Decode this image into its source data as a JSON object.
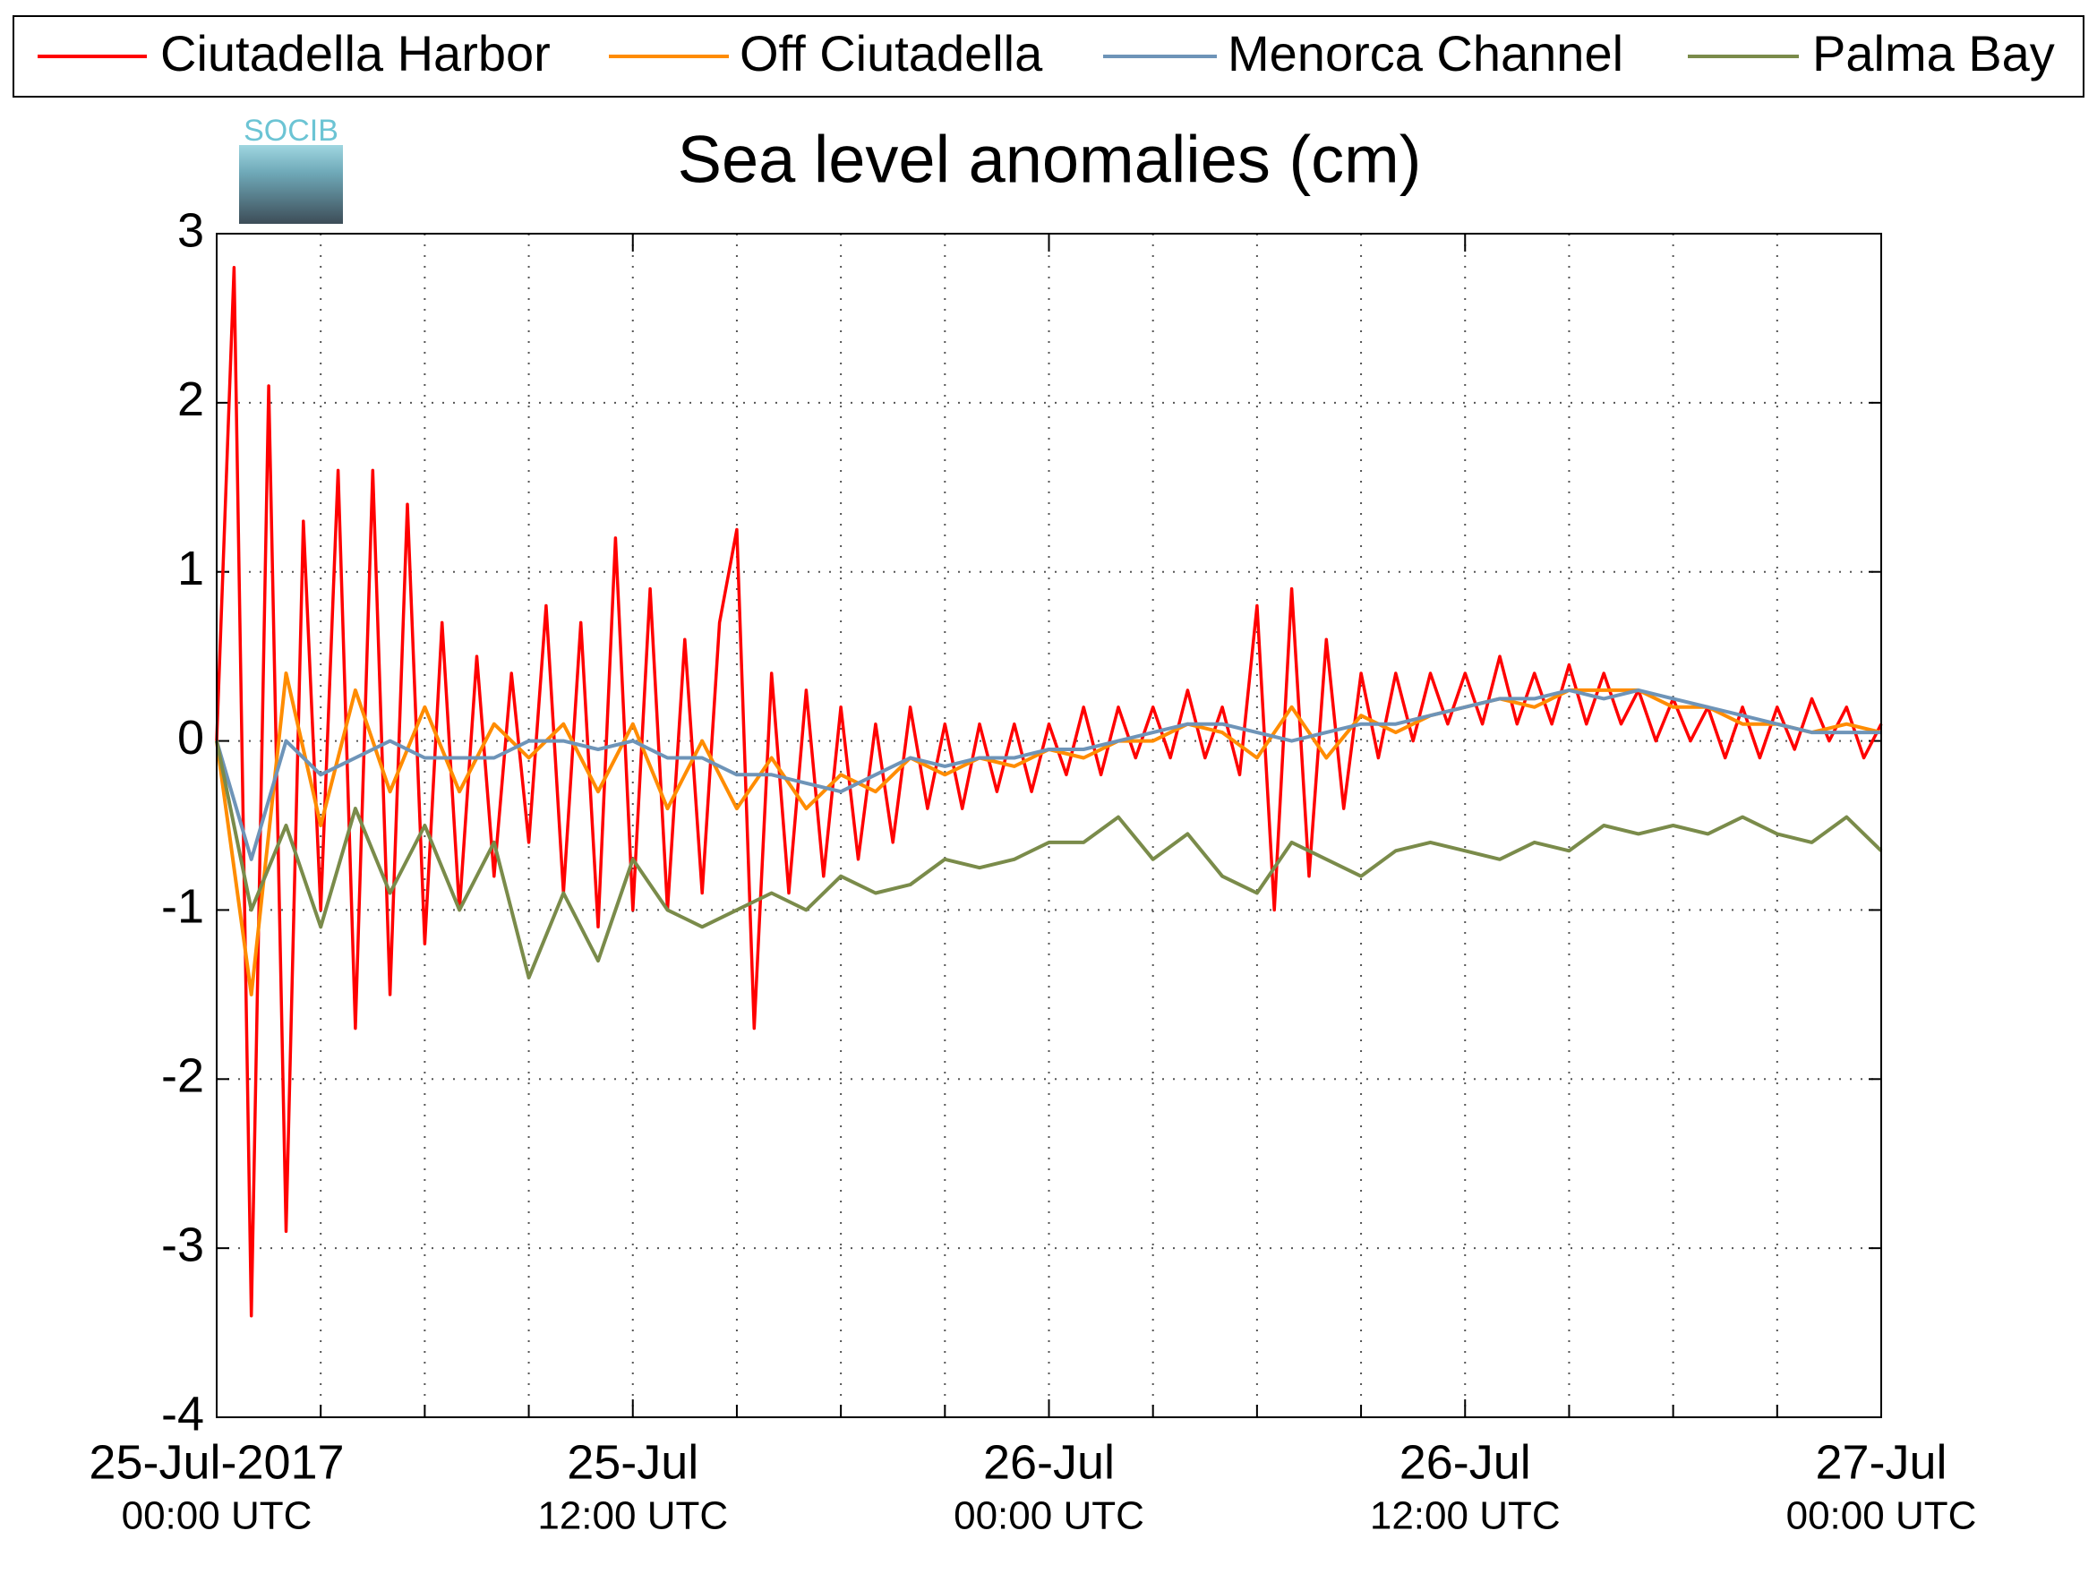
{
  "chart_data": {
    "type": "line",
    "title": "Sea level anomalies (cm)",
    "logo_text": "SOCIB",
    "xlim": [
      0,
      48
    ],
    "xticks": [
      {
        "value": 0,
        "label": [
          "25-Jul-2017",
          "00:00 UTC"
        ]
      },
      {
        "value": 12,
        "label": [
          "25-Jul",
          "12:00 UTC"
        ]
      },
      {
        "value": 24,
        "label": [
          "26-Jul",
          "00:00 UTC"
        ]
      },
      {
        "value": 36,
        "label": [
          "26-Jul",
          "12:00 UTC"
        ]
      },
      {
        "value": 48,
        "label": [
          "27-Jul",
          "00:00 UTC"
        ]
      }
    ],
    "xminorticks": [
      3,
      6,
      9,
      15,
      18,
      21,
      27,
      30,
      33,
      39,
      42,
      45
    ],
    "ylim": [
      -4,
      3
    ],
    "yticks": [
      -4,
      -3,
      -2,
      -1,
      0,
      1,
      2,
      3
    ],
    "grid": true,
    "legend": "top",
    "series": [
      {
        "name": "Ciutadella Harbor",
        "color": "#ff0000",
        "x": [
          0,
          0.5,
          1,
          1.5,
          2,
          2.5,
          3,
          3.5,
          4,
          4.5,
          5,
          5.5,
          6,
          6.5,
          7,
          7.5,
          8,
          8.5,
          9,
          9.5,
          10,
          10.5,
          11,
          11.5,
          12,
          12.5,
          13,
          13.5,
          14,
          14.5,
          15,
          15.5,
          16,
          16.5,
          17,
          17.5,
          18,
          18.5,
          19,
          19.5,
          20,
          20.5,
          21,
          21.5,
          22,
          22.5,
          23,
          23.5,
          24,
          24.5,
          25,
          25.5,
          26,
          26.5,
          27,
          27.5,
          28,
          28.5,
          29,
          29.5,
          30,
          30.5,
          31,
          31.5,
          32,
          32.5,
          33,
          33.5,
          34,
          34.5,
          35,
          35.5,
          36,
          36.5,
          37,
          37.5,
          38,
          38.5,
          39,
          39.5,
          40,
          40.5,
          41,
          41.5,
          42,
          42.5,
          43,
          43.5,
          44,
          44.5,
          45,
          45.5,
          46,
          46.5,
          47,
          47.5,
          48
        ],
        "values": [
          0,
          2.8,
          -3.4,
          2.1,
          -2.9,
          1.3,
          -1.0,
          1.6,
          -1.7,
          1.6,
          -1.5,
          1.4,
          -1.2,
          0.7,
          -1.0,
          0.5,
          -0.8,
          0.4,
          -0.6,
          0.8,
          -0.9,
          0.7,
          -1.1,
          1.2,
          -1.0,
          0.9,
          -1.0,
          0.6,
          -0.9,
          0.7,
          1.25,
          -1.7,
          0.4,
          -0.9,
          0.3,
          -0.8,
          0.2,
          -0.7,
          0.1,
          -0.6,
          0.2,
          -0.4,
          0.1,
          -0.4,
          0.1,
          -0.3,
          0.1,
          -0.3,
          0.1,
          -0.2,
          0.2,
          -0.2,
          0.2,
          -0.1,
          0.2,
          -0.1,
          0.3,
          -0.1,
          0.2,
          -0.2,
          0.8,
          -1.0,
          0.9,
          -0.8,
          0.6,
          -0.4,
          0.4,
          -0.1,
          0.4,
          0.0,
          0.4,
          0.1,
          0.4,
          0.1,
          0.5,
          0.1,
          0.4,
          0.1,
          0.45,
          0.1,
          0.4,
          0.1,
          0.3,
          0.0,
          0.25,
          0.0,
          0.2,
          -0.1,
          0.2,
          -0.1,
          0.2,
          -0.05,
          0.25,
          0.0,
          0.2,
          -0.1,
          0.1
        ]
      },
      {
        "name": "Off Ciutadella",
        "color": "#ff8c00",
        "x": [
          0,
          1,
          2,
          3,
          4,
          5,
          6,
          7,
          8,
          9,
          10,
          11,
          12,
          13,
          14,
          15,
          16,
          17,
          18,
          19,
          20,
          21,
          22,
          23,
          24,
          25,
          26,
          27,
          28,
          29,
          30,
          31,
          32,
          33,
          34,
          35,
          36,
          37,
          38,
          39,
          40,
          41,
          42,
          43,
          44,
          45,
          46,
          47,
          48
        ],
        "values": [
          0,
          -1.5,
          0.4,
          -0.5,
          0.3,
          -0.3,
          0.2,
          -0.3,
          0.1,
          -0.1,
          0.1,
          -0.3,
          0.1,
          -0.4,
          0.0,
          -0.4,
          -0.1,
          -0.4,
          -0.2,
          -0.3,
          -0.1,
          -0.2,
          -0.1,
          -0.15,
          -0.05,
          -0.1,
          0.0,
          0.0,
          0.1,
          0.05,
          -0.1,
          0.2,
          -0.1,
          0.15,
          0.05,
          0.15,
          0.2,
          0.25,
          0.2,
          0.3,
          0.3,
          0.3,
          0.2,
          0.2,
          0.1,
          0.1,
          0.05,
          0.1,
          0.05
        ]
      },
      {
        "name": "Menorca Channel",
        "color": "#6e94b8",
        "x": [
          0,
          1,
          2,
          3,
          4,
          5,
          6,
          7,
          8,
          9,
          10,
          11,
          12,
          13,
          14,
          15,
          16,
          17,
          18,
          19,
          20,
          21,
          22,
          23,
          24,
          25,
          26,
          27,
          28,
          29,
          30,
          31,
          32,
          33,
          34,
          35,
          36,
          37,
          38,
          39,
          40,
          41,
          42,
          43,
          44,
          45,
          46,
          47,
          48
        ],
        "values": [
          0,
          -0.7,
          0.0,
          -0.2,
          -0.1,
          0.0,
          -0.1,
          -0.1,
          -0.1,
          0.0,
          0.0,
          -0.05,
          0.0,
          -0.1,
          -0.1,
          -0.2,
          -0.2,
          -0.25,
          -0.3,
          -0.2,
          -0.1,
          -0.15,
          -0.1,
          -0.1,
          -0.05,
          -0.05,
          0.0,
          0.05,
          0.1,
          0.1,
          0.05,
          0.0,
          0.05,
          0.1,
          0.1,
          0.15,
          0.2,
          0.25,
          0.25,
          0.3,
          0.25,
          0.3,
          0.25,
          0.2,
          0.15,
          0.1,
          0.05,
          0.05,
          0.05
        ]
      },
      {
        "name": "Palma Bay",
        "color": "#7a8b4a",
        "x": [
          0,
          1,
          2,
          3,
          4,
          5,
          6,
          7,
          8,
          9,
          10,
          11,
          12,
          13,
          14,
          15,
          16,
          17,
          18,
          19,
          20,
          21,
          22,
          23,
          24,
          25,
          26,
          27,
          28,
          29,
          30,
          31,
          32,
          33,
          34,
          35,
          36,
          37,
          38,
          39,
          40,
          41,
          42,
          43,
          44,
          45,
          46,
          47,
          48
        ],
        "values": [
          0,
          -1.0,
          -0.5,
          -1.1,
          -0.4,
          -0.9,
          -0.5,
          -1.0,
          -0.6,
          -1.4,
          -0.9,
          -1.3,
          -0.7,
          -1.0,
          -1.1,
          -1.0,
          -0.9,
          -1.0,
          -0.8,
          -0.9,
          -0.85,
          -0.7,
          -0.75,
          -0.7,
          -0.6,
          -0.6,
          -0.45,
          -0.7,
          -0.55,
          -0.8,
          -0.9,
          -0.6,
          -0.7,
          -0.8,
          -0.65,
          -0.6,
          -0.65,
          -0.7,
          -0.6,
          -0.65,
          -0.5,
          -0.55,
          -0.5,
          -0.55,
          -0.45,
          -0.55,
          -0.6,
          -0.45,
          -0.65
        ]
      }
    ]
  }
}
